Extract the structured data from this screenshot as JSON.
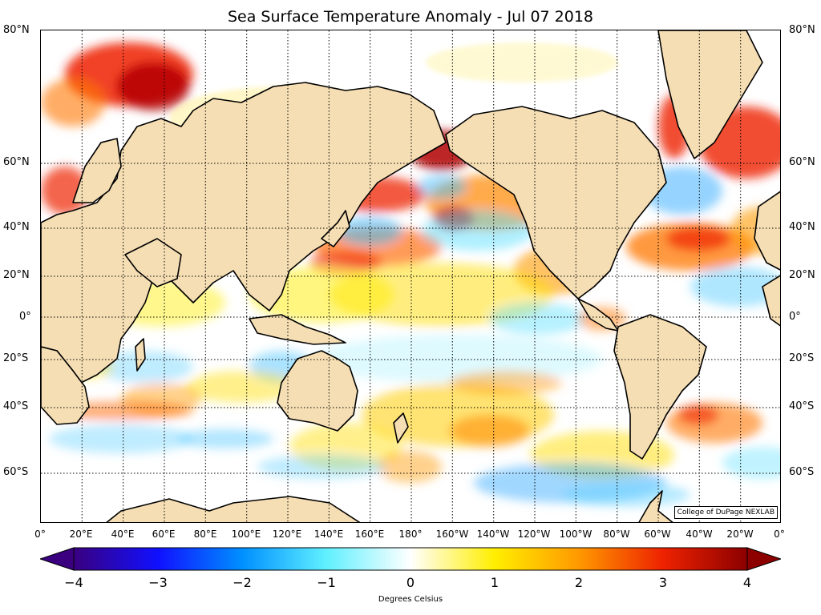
{
  "title": "Sea Surface Temperature Anomaly - Jul 07 2018",
  "credit": "College of DuPage NEXLAB",
  "colorbar": {
    "label": "Degrees Celsius",
    "ticks": [
      "−4",
      "−3",
      "−2",
      "−1",
      "0",
      "1",
      "2",
      "3",
      "4"
    ],
    "min": -4,
    "max": 4,
    "colors": [
      "#3a0080",
      "#1010ff",
      "#0090ff",
      "#60f0ff",
      "#ffffff",
      "#ffee00",
      "#ff9900",
      "#ee2200",
      "#8c0000"
    ]
  },
  "lat_labels": [
    "80°N",
    "60°N",
    "40°N",
    "20°N",
    "0°",
    "20°S",
    "40°S",
    "60°S"
  ],
  "lon_labels": [
    "0°",
    "20°E",
    "40°E",
    "60°E",
    "80°E",
    "100°E",
    "120°E",
    "140°E",
    "160°E",
    "180°",
    "160°W",
    "140°W",
    "120°W",
    "100°W",
    "80°W",
    "60°W",
    "40°W",
    "20°W",
    "0°"
  ],
  "colors": {
    "land": "#f5deb3",
    "coast": "#000000"
  }
}
